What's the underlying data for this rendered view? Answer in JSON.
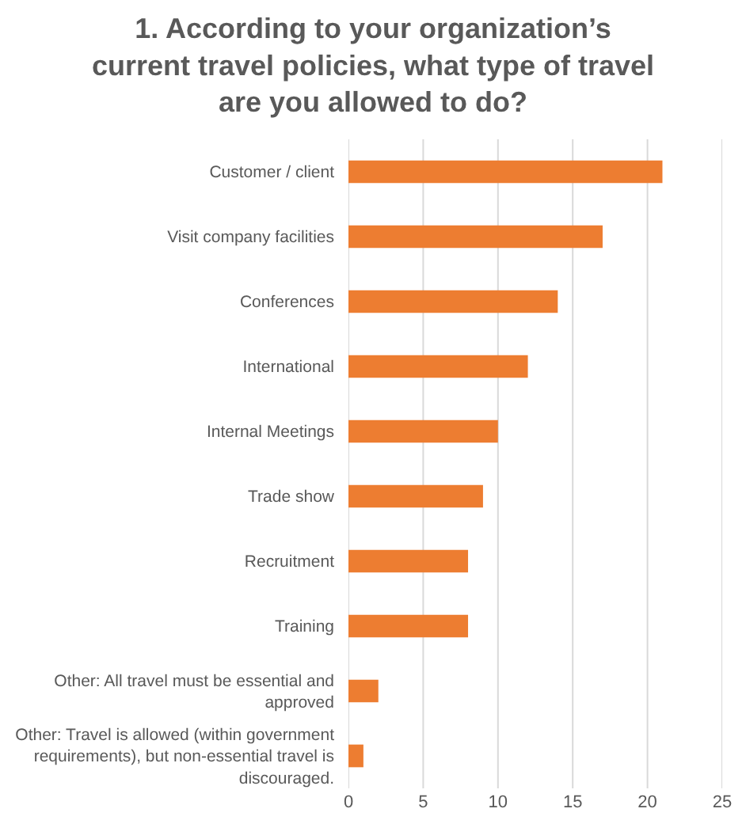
{
  "chart_data": {
    "type": "bar",
    "orientation": "horizontal",
    "title": "1. According to your organization’s\ncurrent travel policies, what type of travel\nare you allowed to do?",
    "categories": [
      "Customer / client",
      "Visit company facilities",
      "Conferences",
      "International",
      "Internal Meetings",
      "Trade show",
      "Recruitment",
      "Training",
      "Other: All travel must be essential and approved",
      "Other: Travel is allowed (within government requirements), but non-essential travel is discouraged."
    ],
    "values": [
      21,
      17,
      14,
      12,
      10,
      9,
      8,
      8,
      2,
      1
    ],
    "color": "#ed7d31",
    "xlim": [
      0,
      25
    ],
    "xticks": [
      0,
      5,
      10,
      15,
      20,
      25
    ],
    "grid": "x"
  }
}
